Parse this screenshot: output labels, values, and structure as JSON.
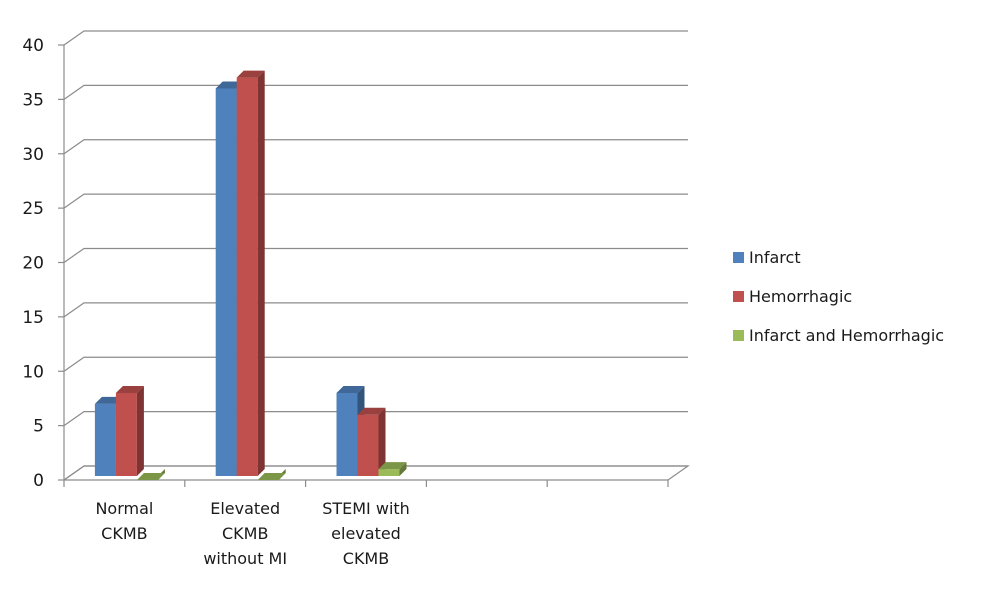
{
  "chart_data": {
    "type": "bar",
    "style": "3d-clustered-column",
    "categories": [
      [
        "Normal",
        "CKMB"
      ],
      [
        "Elevated",
        "CKMB",
        "without MI"
      ],
      [
        "STEMI with",
        "elevated",
        "CKMB"
      ],
      [],
      []
    ],
    "series": [
      {
        "name": "Infarct",
        "values": [
          7,
          36,
          8,
          null,
          null
        ],
        "color": "#4F81BD"
      },
      {
        "name": "Hemorrhagic",
        "values": [
          8,
          37,
          6,
          null,
          null
        ],
        "color": "#C0504D"
      },
      {
        "name": "Infarct and Hemorrhagic",
        "values": [
          0,
          0,
          1,
          null,
          null
        ],
        "color": "#9BBB59"
      }
    ],
    "ylim": [
      0,
      40
    ],
    "yticks": [
      0,
      5,
      10,
      15,
      20,
      25,
      30,
      35,
      40
    ],
    "grid": true,
    "legend": "right"
  }
}
